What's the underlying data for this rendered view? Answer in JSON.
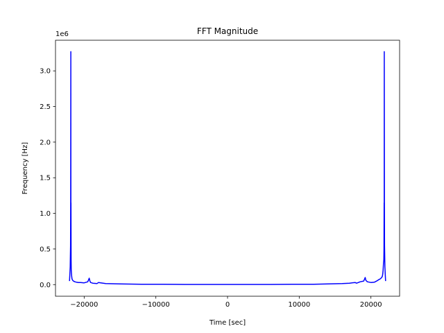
{
  "chart_data": {
    "type": "line",
    "title": "FFT Magnitude",
    "xlabel": "Time [sec]",
    "ylabel": "Frequency [Hz]",
    "y_offset_label": "1e6",
    "xlim": [
      -24000,
      24000
    ],
    "ylim": [
      -0.163,
      3.43
    ],
    "xticks": [
      -20000,
      -10000,
      0,
      10000,
      20000
    ],
    "xtick_labels": [
      "−20000",
      "−10000",
      "0",
      "10000",
      "20000"
    ],
    "yticks": [
      0.0,
      0.5,
      1.0,
      1.5,
      2.0,
      2.5,
      3.0
    ],
    "ytick_labels": [
      "0.0",
      "0.5",
      "1.0",
      "1.5",
      "2.0",
      "2.5",
      "3.0"
    ],
    "grid": false,
    "line_color": "#0000ff",
    "series": [
      {
        "name": "FFT magnitude",
        "x": [
          -22050,
          -21950,
          -21900,
          -21880,
          -21860,
          -21850,
          -21840,
          -21820,
          -21800,
          -21750,
          -21700,
          -21650,
          -21600,
          -21500,
          -21300,
          -21100,
          -20800,
          -20500,
          -20000,
          -19500,
          -19300,
          -19200,
          -19100,
          -18800,
          -18200,
          -18000,
          -17000,
          -15000,
          -12000,
          -9000,
          -6000,
          -3000,
          0,
          3000,
          6000,
          9000,
          12000,
          14000,
          16000,
          17000,
          17800,
          18000,
          18500,
          19000,
          19200,
          19300,
          19500,
          20000,
          20500,
          20800,
          21100,
          21300,
          21500,
          21600,
          21650,
          21700,
          21750,
          21800,
          21820,
          21840,
          21850,
          21860,
          21880,
          21900,
          21950,
          22050
        ],
        "y": [
          0.05,
          0.25,
          0.55,
          1.15,
          3.27,
          0.6,
          1.15,
          0.35,
          0.2,
          0.12,
          0.08,
          0.07,
          0.06,
          0.05,
          0.04,
          0.035,
          0.03,
          0.03,
          0.025,
          0.04,
          0.09,
          0.05,
          0.03,
          0.02,
          0.015,
          0.03,
          0.015,
          0.01,
          0.005,
          0.004,
          0.003,
          0.003,
          0.003,
          0.003,
          0.003,
          0.004,
          0.005,
          0.01,
          0.015,
          0.02,
          0.03,
          0.02,
          0.04,
          0.05,
          0.1,
          0.06,
          0.04,
          0.03,
          0.035,
          0.05,
          0.07,
          0.08,
          0.1,
          0.12,
          0.15,
          0.2,
          0.3,
          0.35,
          0.5,
          1.15,
          0.6,
          3.27,
          1.15,
          0.55,
          0.25,
          0.05
        ]
      }
    ]
  }
}
